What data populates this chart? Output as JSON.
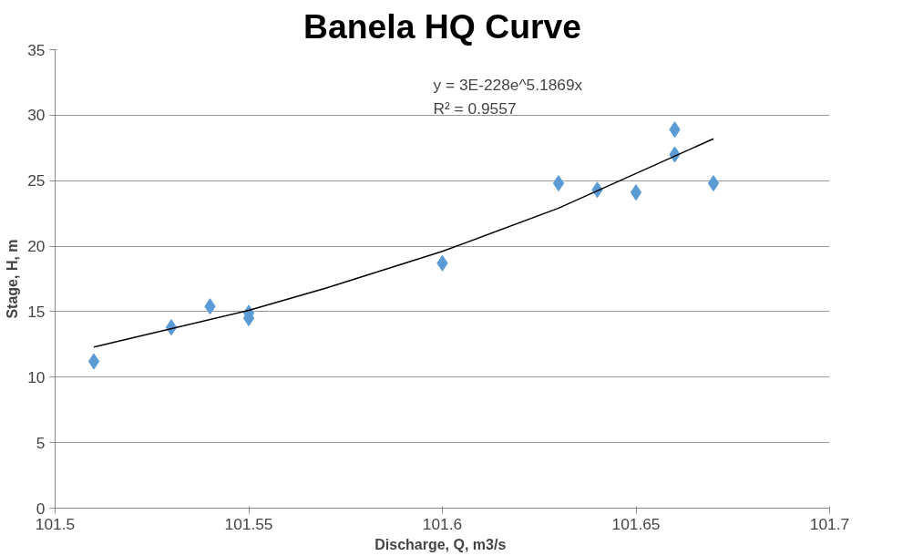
{
  "chart_data": {
    "type": "scatter",
    "title": "Banela HQ Curve",
    "xlabel": "Discharge,  Q, m3/s",
    "ylabel": "Stage, H, m",
    "series": [
      {
        "color": "#5b9bd5",
        "marker": "diamond",
        "x": [
          101.51,
          101.53,
          101.54,
          101.55,
          101.55,
          101.6,
          101.63,
          101.64,
          101.65,
          101.66,
          101.66,
          101.67
        ],
        "values": [
          11.2,
          13.8,
          15.4,
          14.9,
          14.5,
          18.7,
          24.8,
          24.3,
          24.1,
          28.9,
          27.0,
          24.8
        ]
      },
      {
        "type": "line",
        "color": "#000000",
        "marker": "none",
        "x": [
          101.51,
          101.55,
          101.57,
          101.6,
          101.63,
          101.67
        ],
        "values": [
          12.3,
          15.1,
          16.8,
          19.6,
          22.9,
          28.2
        ]
      }
    ],
    "annotations": [
      "y = 3E-228e^5.1869x",
      "R² = 0.9557"
    ],
    "xlim": [
      101.5,
      101.7
    ],
    "xticks": [
      101.5,
      101.55,
      101.6,
      101.65,
      101.7
    ],
    "ylim": [
      0,
      35
    ],
    "yticks": [
      0,
      5,
      10,
      15,
      20,
      25,
      30,
      35
    ],
    "grid": "y"
  }
}
